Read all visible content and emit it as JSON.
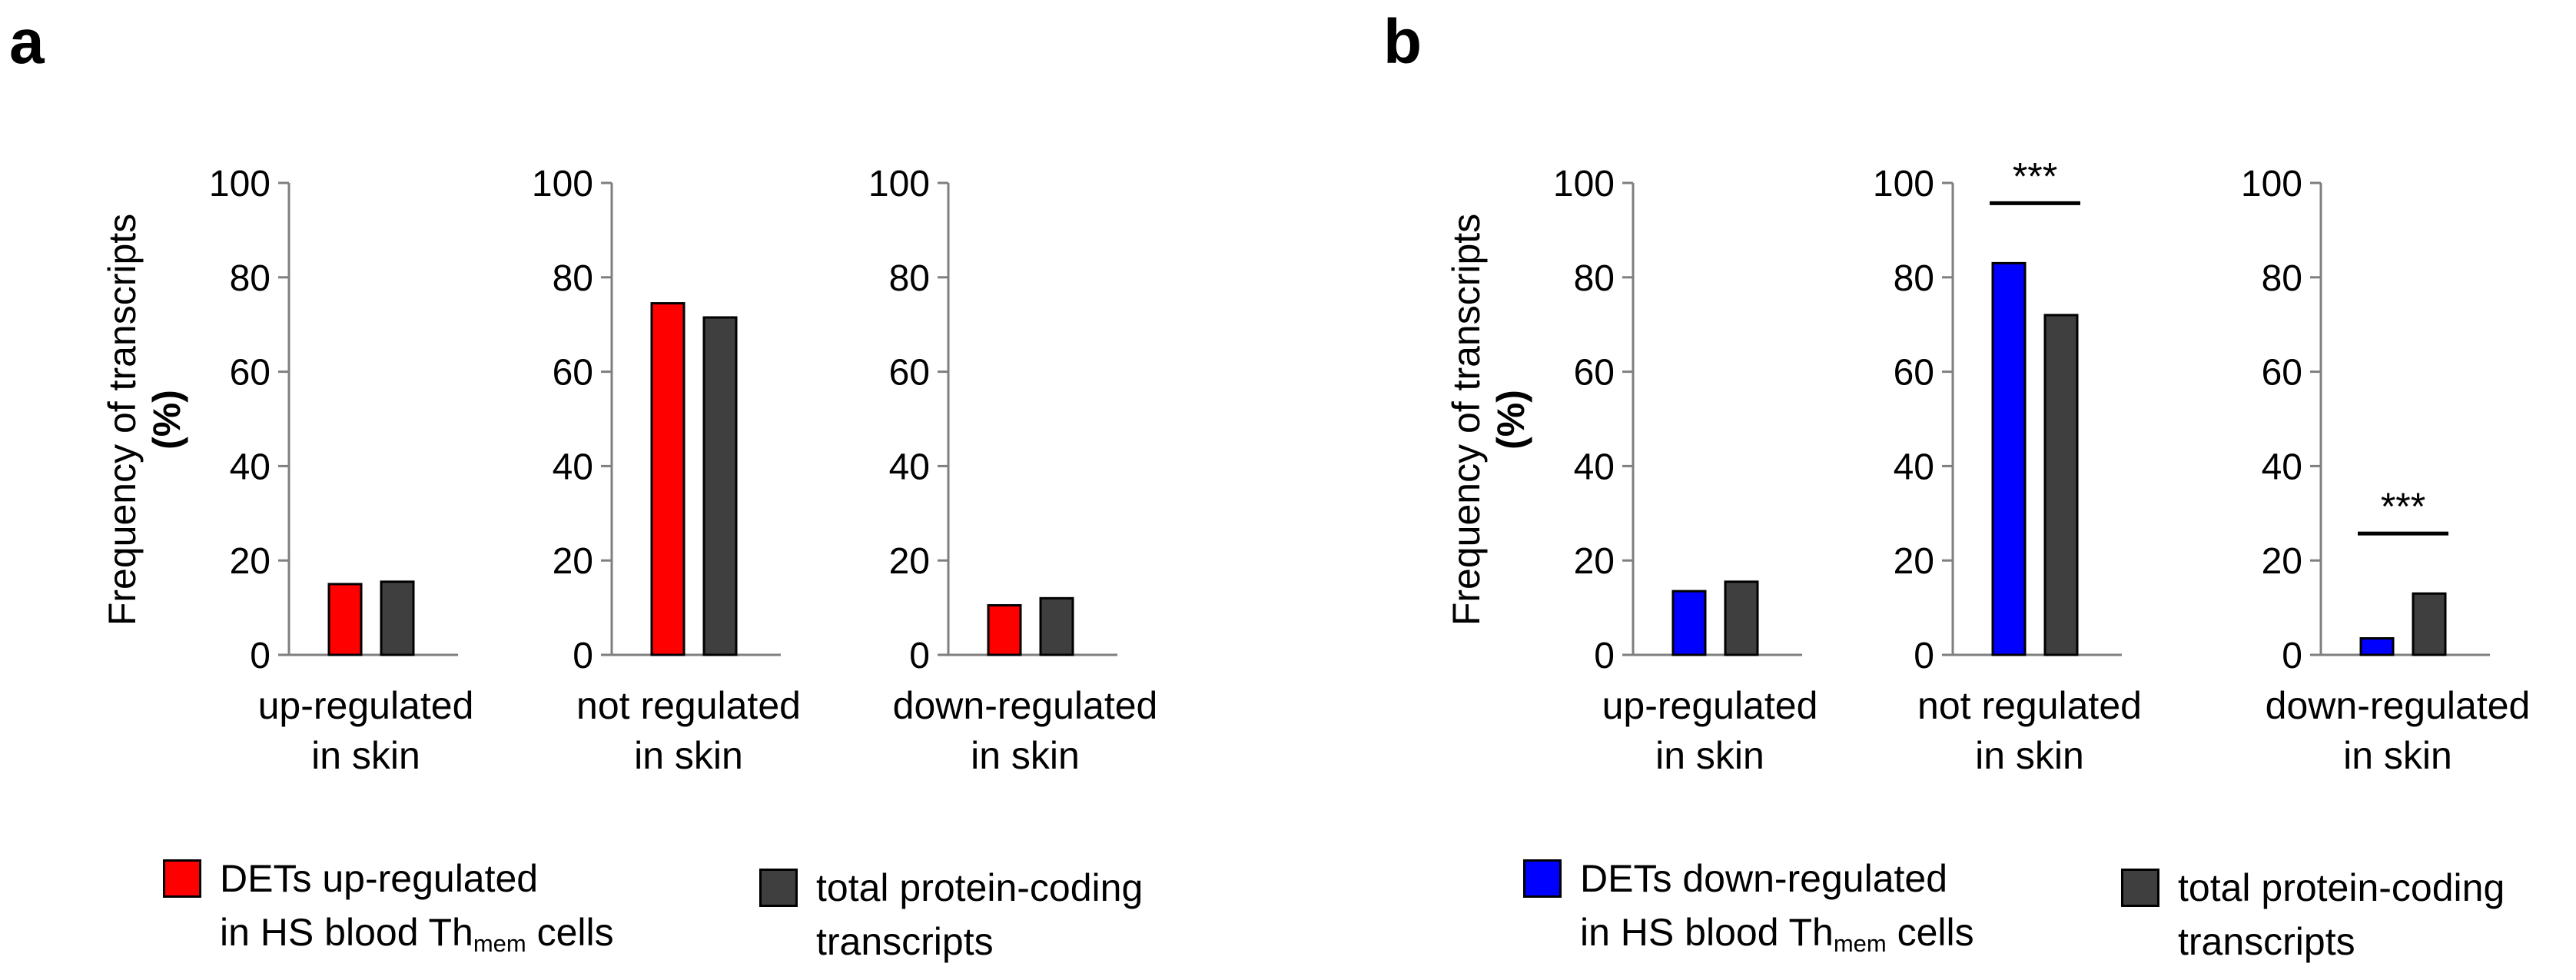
{
  "panel_labels": {
    "a": "a",
    "b": "b"
  },
  "colors": {
    "up": "#ff0000",
    "down": "#0000ff",
    "total": "#3f3f3f",
    "axis": "#7f7f7f"
  },
  "chart_data": [
    {
      "type": "bar",
      "panel": "a",
      "subplot": 1,
      "ylabel_line1": "Frequency of transcripts",
      "ylabel_line2": "(%)",
      "ylim": [
        0,
        100
      ],
      "yticks": [
        "0",
        "20",
        "40",
        "60",
        "80",
        "100"
      ],
      "xlabel_line1": "up-regulated",
      "xlabel_line2": "in skin",
      "series": [
        {
          "name": "DETs up-regulated in HS blood Thmem cells",
          "values": [
            15
          ]
        },
        {
          "name": "total protein-coding transcripts",
          "values": [
            15.5
          ]
        }
      ],
      "annotation": ""
    },
    {
      "type": "bar",
      "panel": "a",
      "subplot": 2,
      "ylim": [
        0,
        100
      ],
      "yticks": [
        "0",
        "20",
        "40",
        "60",
        "80",
        "100"
      ],
      "xlabel_line1": "not regulated",
      "xlabel_line2": "in skin",
      "series": [
        {
          "name": "DETs up-regulated in HS blood Thmem cells",
          "values": [
            74.5
          ]
        },
        {
          "name": "total protein-coding transcripts",
          "values": [
            71.5
          ]
        }
      ],
      "annotation": ""
    },
    {
      "type": "bar",
      "panel": "a",
      "subplot": 3,
      "ylim": [
        0,
        100
      ],
      "yticks": [
        "0",
        "20",
        "40",
        "60",
        "80",
        "100"
      ],
      "xlabel_line1": "down-regulated",
      "xlabel_line2": "in skin",
      "series": [
        {
          "name": "DETs up-regulated in HS blood Thmem cells",
          "values": [
            10.5
          ]
        },
        {
          "name": "total protein-coding transcripts",
          "values": [
            12
          ]
        }
      ],
      "annotation": ""
    },
    {
      "type": "bar",
      "panel": "b",
      "subplot": 1,
      "ylabel_line1": "Frequency of transcripts",
      "ylabel_line2": "(%)",
      "ylim": [
        0,
        100
      ],
      "yticks": [
        "0",
        "20",
        "40",
        "60",
        "80",
        "100"
      ],
      "xlabel_line1": "up-regulated",
      "xlabel_line2": "in skin",
      "series": [
        {
          "name": "DETs down-regulated in HS blood Thmem cells",
          "values": [
            13.5
          ]
        },
        {
          "name": "total protein-coding transcripts",
          "values": [
            15.5
          ]
        }
      ],
      "annotation": ""
    },
    {
      "type": "bar",
      "panel": "b",
      "subplot": 2,
      "ylim": [
        0,
        100
      ],
      "yticks": [
        "0",
        "20",
        "40",
        "60",
        "80",
        "100"
      ],
      "xlabel_line1": "not regulated",
      "xlabel_line2": "in skin",
      "series": [
        {
          "name": "DETs down-regulated in HS blood Thmem cells",
          "values": [
            83
          ]
        },
        {
          "name": "total protein-coding transcripts",
          "values": [
            72
          ]
        }
      ],
      "annotation": "***"
    },
    {
      "type": "bar",
      "panel": "b",
      "subplot": 3,
      "ylim": [
        0,
        100
      ],
      "yticks": [
        "0",
        "20",
        "40",
        "60",
        "80",
        "100"
      ],
      "xlabel_line1": "down-regulated",
      "xlabel_line2": "in skin",
      "series": [
        {
          "name": "DETs down-regulated in HS blood Thmem cells",
          "values": [
            3.5
          ]
        },
        {
          "name": "total protein-coding transcripts",
          "values": [
            13
          ]
        }
      ],
      "annotation": "***"
    }
  ],
  "legend_a": {
    "first": {
      "line1": "DETs up-regulated",
      "line2_prefix": "in HS blood Th",
      "line2_sub": "mem",
      "line2_suffix": " cells"
    },
    "second": {
      "line1": "total protein-coding",
      "line2": "transcripts"
    }
  },
  "legend_b": {
    "first": {
      "line1": "DETs down-regulated",
      "line2_prefix": "in HS blood Th",
      "line2_sub": "mem",
      "line2_suffix": " cells"
    },
    "second": {
      "line1": "total protein-coding",
      "line2": "transcripts"
    }
  }
}
